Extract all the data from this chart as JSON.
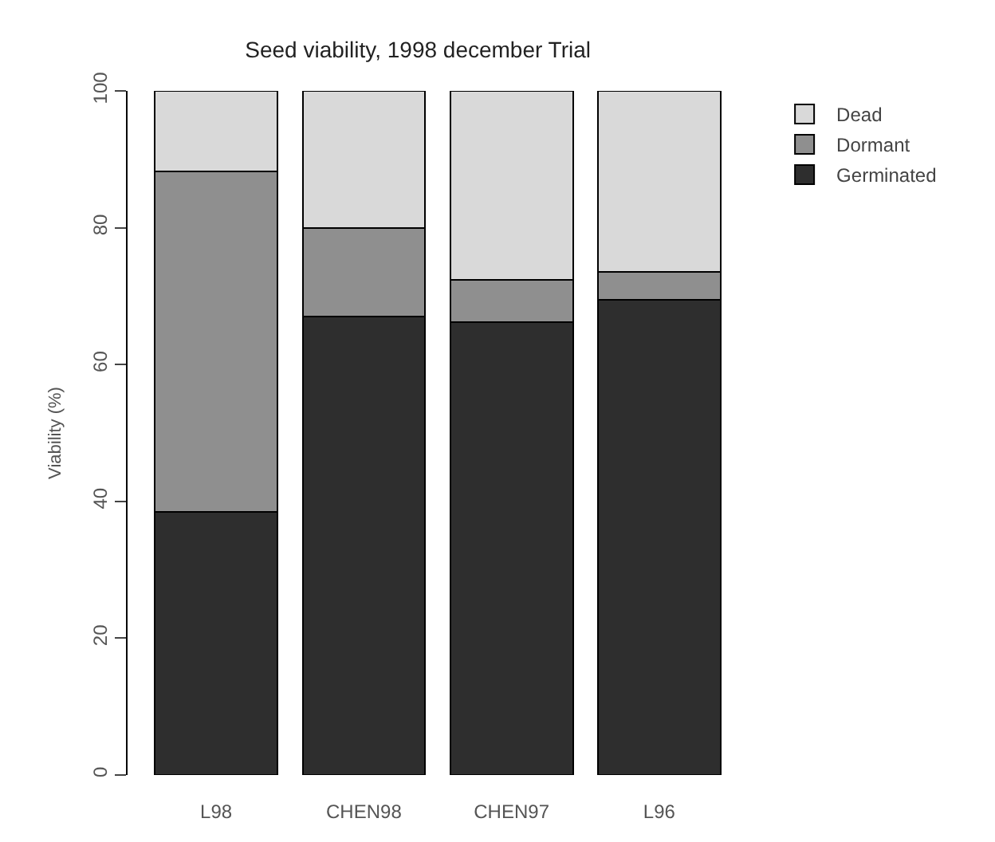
{
  "chart_data": {
    "type": "bar",
    "title": "Seed viability, 1998 december Trial",
    "ylabel": "Viability (%)",
    "categories": [
      "L98",
      "CHEN98",
      "CHEN97",
      "L96"
    ],
    "stacked": true,
    "ylim": [
      0,
      100
    ],
    "yticks": [
      0,
      20,
      40,
      60,
      80,
      100
    ],
    "legend": "top right",
    "series": [
      {
        "name": "Germinated",
        "color": "#2e2e2e",
        "values": [
          38.5,
          67.0,
          66.2,
          69.5
        ]
      },
      {
        "name": "Dormant",
        "color": "#8f8f8f",
        "values": [
          49.7,
          12.9,
          6.2,
          4.0
        ]
      },
      {
        "name": "Dead",
        "color": "#d9d9d9",
        "values": [
          11.8,
          20.1,
          27.6,
          26.5
        ]
      }
    ]
  }
}
